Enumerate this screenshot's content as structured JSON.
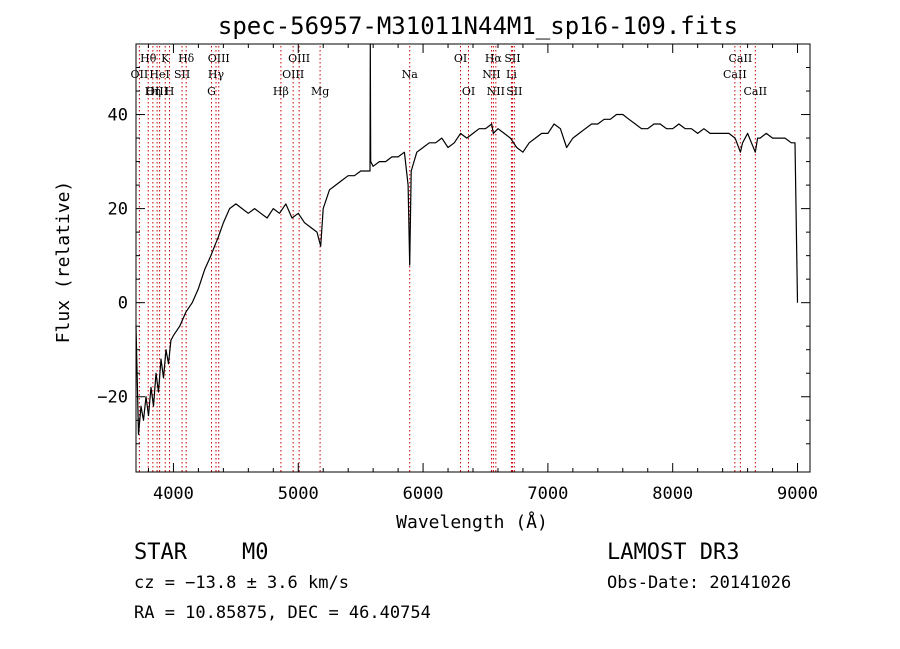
{
  "chart_data": {
    "type": "line",
    "title": "spec-56957-M31011N44M1_sp16-109.fits",
    "xlabel": "Wavelength (Å)",
    "ylabel": "Flux (relative)",
    "xlim": [
      3700,
      9100
    ],
    "ylim": [
      -36,
      55
    ],
    "x_ticks": [
      4000,
      5000,
      6000,
      7000,
      8000,
      9000
    ],
    "x_tick_labels": [
      "4000",
      "5000",
      "6000",
      "7000",
      "8000",
      "9000"
    ],
    "y_ticks": [
      -20,
      0,
      20,
      40
    ],
    "y_tick_labels": [
      "−20",
      "0",
      "20",
      "40"
    ],
    "grid": false,
    "line_color": "#000000",
    "marker_color": "#cc0000",
    "spectral_lines": [
      {
        "label": "Hθ",
        "x": 3798,
        "row": 1
      },
      {
        "label": "OII",
        "x": 3727,
        "row": 2
      },
      {
        "label": "OIII",
        "x": 3869,
        "row": 3
      },
      {
        "label": "K",
        "x": 3934,
        "row": 1
      },
      {
        "label": "HeI",
        "x": 3889,
        "row": 2
      },
      {
        "label": "Hη",
        "x": 3835,
        "row": 3
      },
      {
        "label": "SII",
        "x": 4069,
        "row": 2
      },
      {
        "label": "H",
        "x": 3969,
        "row": 3
      },
      {
        "label": "Hδ",
        "x": 4102,
        "row": 1
      },
      {
        "label": "OIII",
        "x": 4363,
        "row": 1
      },
      {
        "label": "Hγ",
        "x": 4341,
        "row": 2
      },
      {
        "label": "G",
        "x": 4305,
        "row": 3
      },
      {
        "label": "OIII",
        "x": 5007,
        "row": 1
      },
      {
        "label": "OIII",
        "x": 4959,
        "row": 2
      },
      {
        "label": "Hβ",
        "x": 4861,
        "row": 3
      },
      {
        "label": "Mg",
        "x": 5175,
        "row": 3
      },
      {
        "label": "Na",
        "x": 5893,
        "row": 2
      },
      {
        "label": "OI",
        "x": 6300,
        "row": 1
      },
      {
        "label": "OI",
        "x": 6364,
        "row": 3
      },
      {
        "label": "Hα",
        "x": 6563,
        "row": 1
      },
      {
        "label": "SII",
        "x": 6716,
        "row": 1
      },
      {
        "label": "NII",
        "x": 6548,
        "row": 2
      },
      {
        "label": "Li",
        "x": 6708,
        "row": 2
      },
      {
        "label": "NII",
        "x": 6583,
        "row": 3
      },
      {
        "label": "SII",
        "x": 6731,
        "row": 3
      },
      {
        "label": "CaII",
        "x": 8542,
        "row": 1
      },
      {
        "label": "CaII",
        "x": 8498,
        "row": 2
      },
      {
        "label": "CaII",
        "x": 8662,
        "row": 3
      }
    ],
    "series": [
      {
        "x": [
          3700,
          3720,
          3740,
          3760,
          3780,
          3800,
          3820,
          3840,
          3860,
          3880,
          3900,
          3920,
          3940,
          3960,
          3980,
          4000,
          4050,
          4100,
          4150,
          4200,
          4250,
          4300,
          4330,
          4360,
          4400,
          4450,
          4500,
          4550,
          4600,
          4650,
          4700,
          4750,
          4800,
          4850,
          4900,
          4950,
          5000,
          5050,
          5100,
          5150,
          5180,
          5200,
          5250,
          5300,
          5350,
          5400,
          5450,
          5500,
          5550,
          5575,
          5577,
          5580,
          5600,
          5650,
          5700,
          5750,
          5800,
          5850,
          5880,
          5893,
          5905,
          5950,
          6000,
          6050,
          6100,
          6150,
          6200,
          6250,
          6300,
          6350,
          6400,
          6450,
          6500,
          6550,
          6563,
          6600,
          6650,
          6700,
          6750,
          6800,
          6850,
          6900,
          6950,
          7000,
          7050,
          7100,
          7150,
          7200,
          7250,
          7300,
          7350,
          7400,
          7450,
          7500,
          7550,
          7600,
          7650,
          7700,
          7750,
          7800,
          7850,
          7900,
          7950,
          8000,
          8050,
          8100,
          8150,
          8200,
          8250,
          8300,
          8350,
          8400,
          8450,
          8500,
          8542,
          8560,
          8600,
          8662,
          8680,
          8700,
          8750,
          8800,
          8850,
          8900,
          8950,
          8980,
          9000
        ],
        "y": [
          -5,
          -28,
          -22,
          -25,
          -20,
          -24,
          -18,
          -22,
          -15,
          -19,
          -12,
          -16,
          -10,
          -13,
          -8,
          -7,
          -5,
          -2,
          0,
          3,
          7,
          10,
          12,
          14,
          17,
          20,
          21,
          20,
          19,
          20,
          19,
          18,
          20,
          19,
          21,
          18,
          19,
          17,
          16,
          15,
          12,
          20,
          24,
          25,
          26,
          27,
          27,
          28,
          28,
          28,
          55,
          30,
          29,
          30,
          30,
          31,
          31,
          32,
          25,
          8,
          28,
          32,
          33,
          34,
          34,
          35,
          33,
          34,
          36,
          35,
          36,
          37,
          37,
          38,
          36,
          37,
          36,
          35,
          33,
          32,
          34,
          35,
          36,
          36,
          38,
          37,
          33,
          35,
          36,
          37,
          38,
          38,
          39,
          39,
          40,
          40,
          39,
          38,
          37,
          37,
          38,
          38,
          37,
          37,
          38,
          37,
          37,
          36,
          37,
          36,
          36,
          36,
          36,
          35,
          32,
          34,
          36,
          32,
          35,
          35,
          36,
          35,
          35,
          35,
          34,
          34,
          0
        ]
      }
    ]
  },
  "info": {
    "object_class": "STAR",
    "subclass": "M0",
    "survey": "LAMOST DR3",
    "cz": "cz = −13.8 ± 3.6 km/s",
    "obs_date": "Obs-Date: 20141026",
    "coords": "RA =  10.85875, DEC =  46.40754"
  }
}
